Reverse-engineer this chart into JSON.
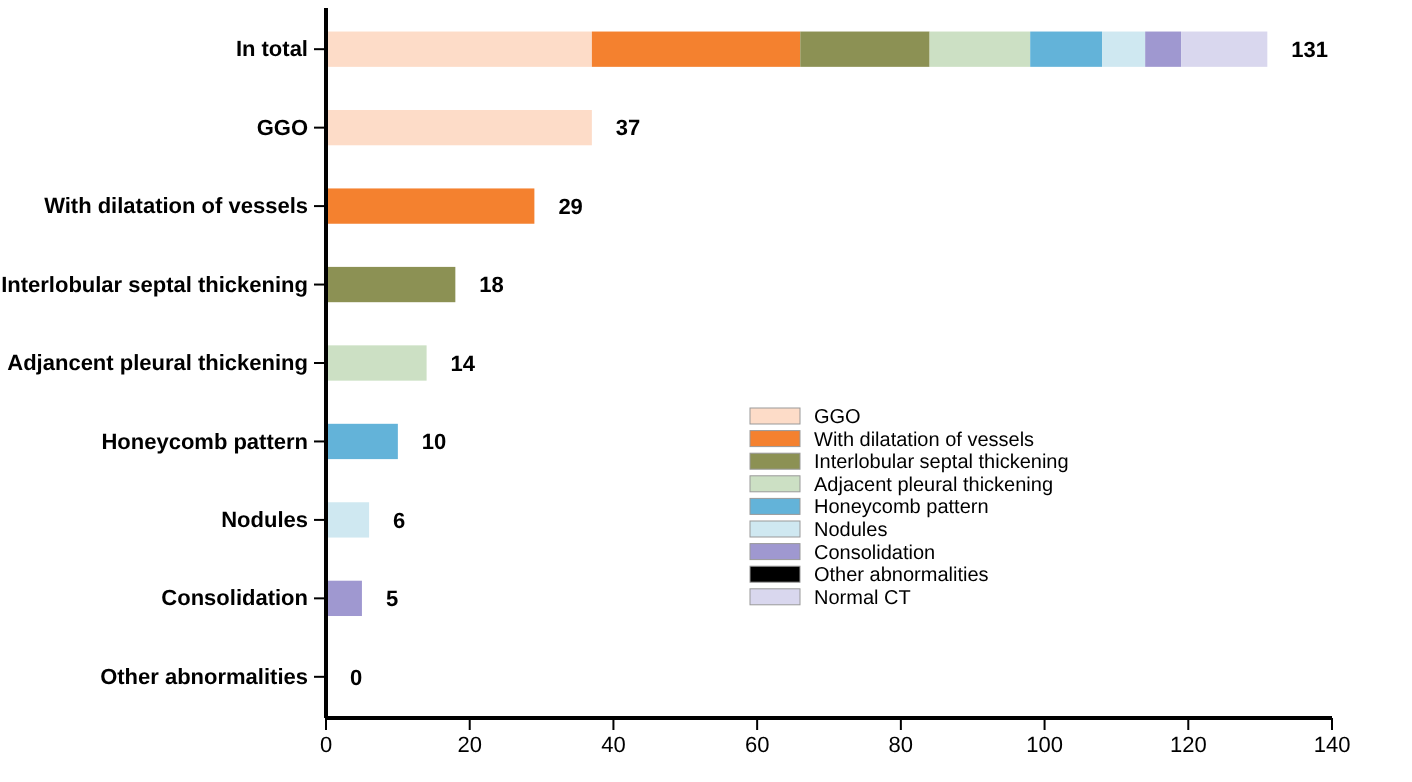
{
  "chart_data": {
    "type": "bar",
    "orientation": "horizontal",
    "stacked": true,
    "categories": [
      "In total",
      "GGO",
      "With dilatation of vessels",
      "Interlobular septal thickening",
      "Adjancent pleural thickening",
      "Honeycomb pattern",
      "Nodules",
      "Consolidation",
      "Other abnormalities"
    ],
    "series": [
      {
        "name": "GGO",
        "color": "#fddcc8",
        "values": [
          37,
          37,
          null,
          null,
          null,
          null,
          null,
          null,
          null
        ]
      },
      {
        "name": "With dilatation of vessels",
        "color": "#f4812f",
        "values": [
          29,
          null,
          29,
          null,
          null,
          null,
          null,
          null,
          null
        ]
      },
      {
        "name": "Interlobular septal thickening",
        "color": "#8c9154",
        "values": [
          18,
          null,
          null,
          18,
          null,
          null,
          null,
          null,
          null
        ]
      },
      {
        "name": "Adjacent pleural thickening",
        "color": "#cce0c4",
        "values": [
          14,
          null,
          null,
          null,
          14,
          null,
          null,
          null,
          null
        ]
      },
      {
        "name": "Honeycomb pattern",
        "color": "#63b3d9",
        "values": [
          10,
          null,
          null,
          null,
          null,
          10,
          null,
          null,
          null
        ]
      },
      {
        "name": "Nodules",
        "color": "#cfe8f1",
        "values": [
          6,
          null,
          null,
          null,
          null,
          null,
          6,
          null,
          null
        ]
      },
      {
        "name": "Consolidation",
        "color": "#9f98d0",
        "values": [
          5,
          null,
          null,
          null,
          null,
          null,
          null,
          5,
          null
        ]
      },
      {
        "name": "Other abnormalities",
        "color": "#000000",
        "values": [
          0,
          null,
          null,
          null,
          null,
          null,
          null,
          null,
          0
        ]
      },
      {
        "name": "Normal CT",
        "color": "#d9d7ee",
        "values": [
          12,
          null,
          null,
          null,
          null,
          null,
          null,
          null,
          null
        ]
      }
    ],
    "totals": [
      "131",
      "37",
      "29",
      "18",
      "14",
      "10",
      "6",
      "5",
      "0"
    ],
    "xlim": [
      0,
      140
    ],
    "xticks": [
      0,
      20,
      40,
      60,
      80,
      100,
      120,
      140
    ],
    "legend": "bottom right",
    "grid": false
  }
}
